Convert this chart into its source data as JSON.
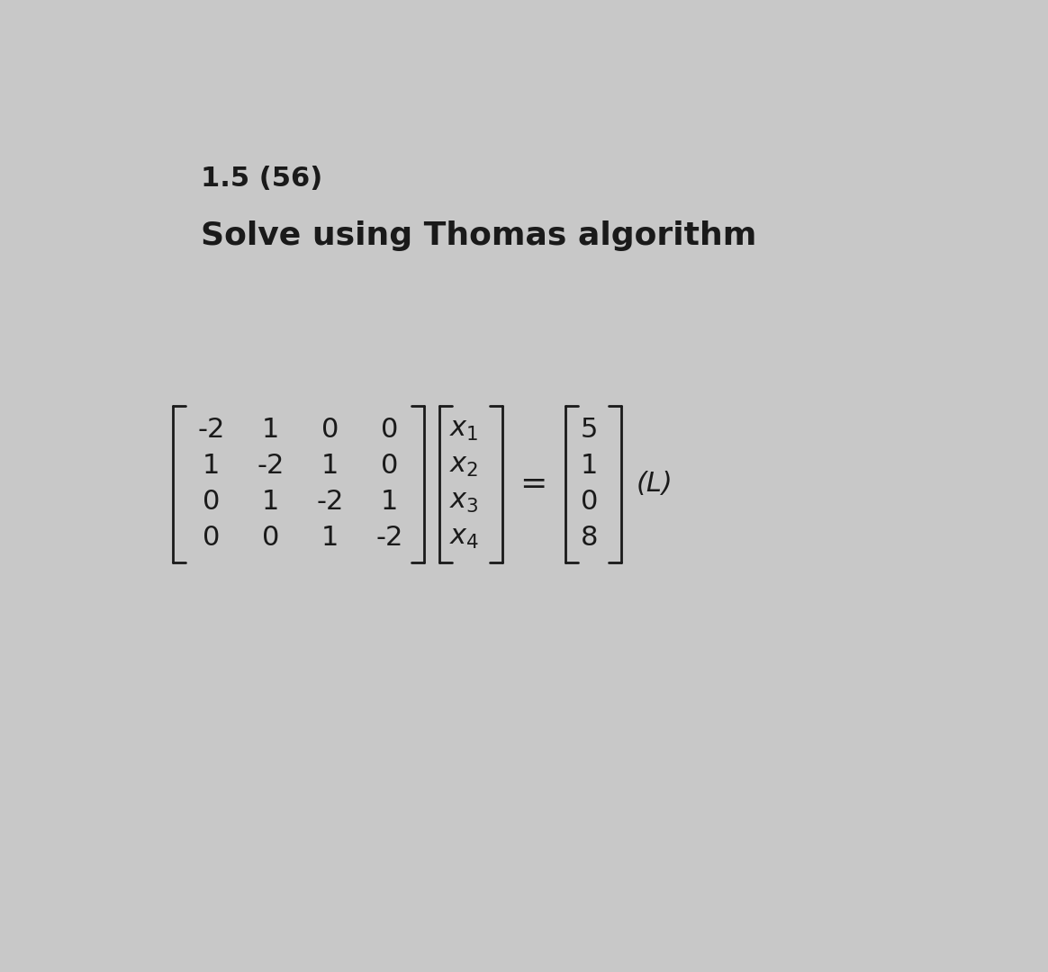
{
  "title1": "1.5 (56)",
  "title2": "Solve using Thomas algorithm",
  "background_color": "#c8c8c8",
  "text_color": "#1a1a1a",
  "title1_fontsize": 22,
  "title2_fontsize": 26,
  "matrix_A": [
    [
      "-2",
      "1",
      "0",
      "0"
    ],
    [
      "1",
      "-2",
      "1",
      "0"
    ],
    [
      "0",
      "1",
      "-2",
      "1"
    ],
    [
      "0",
      "0",
      "1",
      "-2"
    ]
  ],
  "vector_x": [
    "$x_1$",
    "$x_2$",
    "$x_3$",
    "$x_4$"
  ],
  "vector_b": [
    "5",
    "1",
    "0",
    "8"
  ],
  "label_L": "(L)",
  "eq_symbol": "=",
  "matrix_fontsize": 22,
  "bracket_fontsize": 120,
  "label_fontsize": 22
}
